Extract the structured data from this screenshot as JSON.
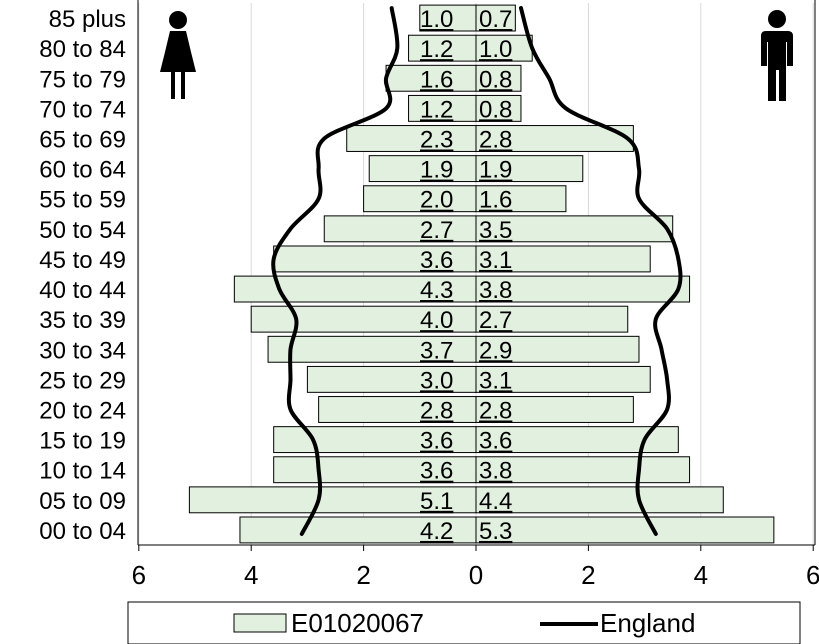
{
  "chart_data": {
    "type": "bar",
    "subtype": "population-pyramid",
    "categories": [
      "00 to 04",
      "05 to 09",
      "10 to 14",
      "15 to 19",
      "20 to 24",
      "25 to 29",
      "30 to 34",
      "35 to 39",
      "40 to 44",
      "45 to 49",
      "50 to 54",
      "55 to 59",
      "60 to 64",
      "65 to 69",
      "70 to 74",
      "75 to 79",
      "80 to 84",
      "85 plus"
    ],
    "series": [
      {
        "name": "E01020067",
        "kind": "bar",
        "color": "#e2f1df",
        "female": [
          4.2,
          5.1,
          3.6,
          3.6,
          2.8,
          3.0,
          3.7,
          4.0,
          4.3,
          3.6,
          2.7,
          2.0,
          1.9,
          2.3,
          1.2,
          1.6,
          1.2,
          1.0
        ],
        "male": [
          5.3,
          4.4,
          3.8,
          3.6,
          2.8,
          3.1,
          2.9,
          2.7,
          3.8,
          3.1,
          3.5,
          1.6,
          1.9,
          2.8,
          0.8,
          0.8,
          1.0,
          0.7
        ]
      },
      {
        "name": "England",
        "kind": "line",
        "color": "#000000",
        "female": [
          3.1,
          2.8,
          2.8,
          2.9,
          3.3,
          3.3,
          3.3,
          3.2,
          3.5,
          3.6,
          3.3,
          2.8,
          2.8,
          2.7,
          1.6,
          1.6,
          1.4,
          1.5
        ],
        "male": [
          3.2,
          2.9,
          2.9,
          3.0,
          3.4,
          3.4,
          3.3,
          3.2,
          3.6,
          3.6,
          3.4,
          2.9,
          2.9,
          2.7,
          1.6,
          1.3,
          1.0,
          0.8
        ]
      }
    ],
    "xticks": [
      "6",
      "4",
      "2",
      "0",
      "2",
      "4",
      "6"
    ],
    "xlim": [
      -6,
      6
    ],
    "bar_labels_female": [
      "4.2",
      "5.1",
      "3.6",
      "3.6",
      "2.8",
      "3.0",
      "3.7",
      "4.0",
      "4.3",
      "3.6",
      "2.7",
      "2.0",
      "1.9",
      "2.3",
      "1.2",
      "1.6",
      "1.2",
      "1.0"
    ],
    "bar_labels_male": [
      "5.3",
      "4.4",
      "3.8",
      "3.6",
      "2.8",
      "3.1",
      "2.9",
      "2.7",
      "3.8",
      "3.1",
      "3.5",
      "1.6",
      "1.9",
      "2.8",
      "0.8",
      "0.8",
      "1.0",
      "0.7"
    ],
    "legend": {
      "position": "bottom",
      "entries": [
        "E01020067",
        "England"
      ]
    },
    "grid": true,
    "icons": {
      "left": "female-figure-icon",
      "right": "male-figure-icon"
    }
  }
}
